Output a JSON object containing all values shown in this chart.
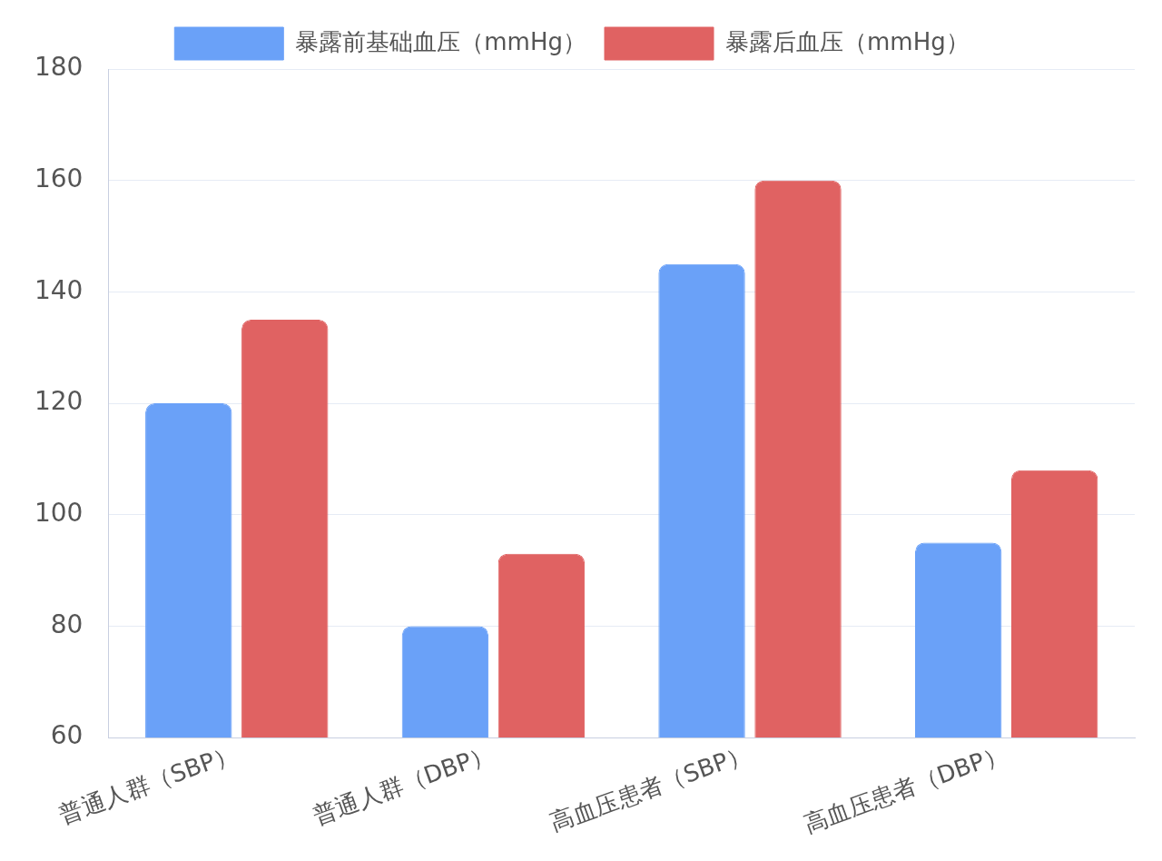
{
  "chart_data": {
    "type": "bar",
    "categories": [
      "普通人群（SBP）",
      "普通人群（DBP）",
      "高血压患者（SBP）",
      "高血压患者（DBP）"
    ],
    "series": [
      {
        "name": "暴露前基础血压（mmHg）",
        "color": "#6aa1f8",
        "values": [
          120,
          80,
          145,
          95
        ]
      },
      {
        "name": "暴露后血压（mmHg）",
        "color": "#e06262",
        "values": [
          135,
          93,
          160,
          108
        ]
      }
    ],
    "ylim": [
      60,
      180
    ],
    "yticks": [
      60,
      80,
      100,
      120,
      140,
      160,
      180
    ],
    "grid": "y",
    "legend": "top"
  }
}
